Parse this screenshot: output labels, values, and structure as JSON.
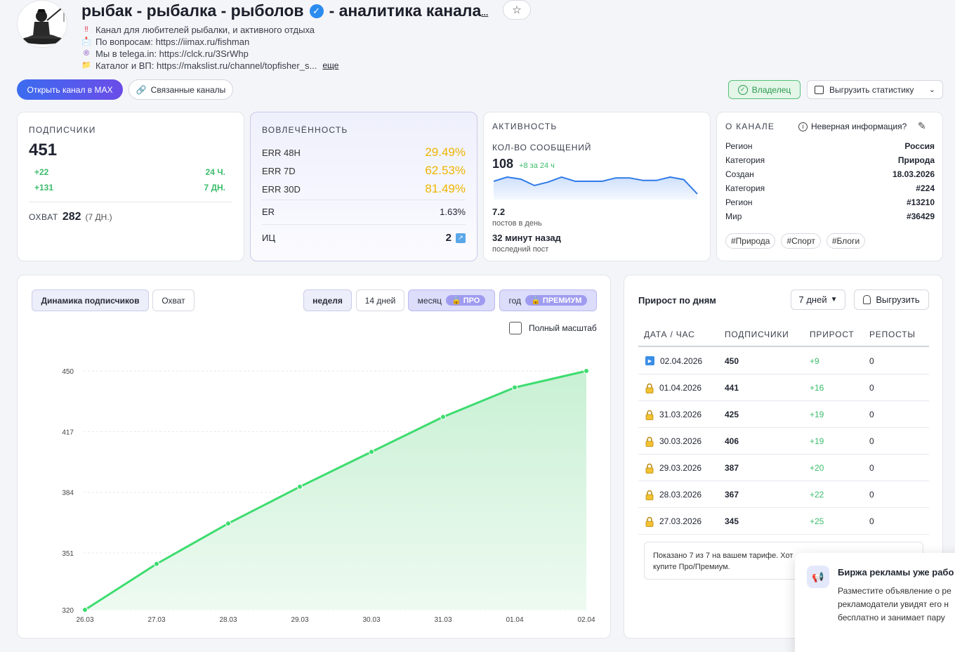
{
  "channel": {
    "title": "рыбак - рыбалка - рыболов",
    "title_suffix": "- аналитика канала",
    "title_more": "...",
    "desc": [
      {
        "icon": "‼",
        "text": "Канал для любителей рыбалки, и активного отдыха"
      },
      {
        "icon": "📩",
        "text": "По вопросам: https://iimax.ru/fishman"
      },
      {
        "icon": "®",
        "text": "Мы в telega.in: https://clck.ru/3SrWhp"
      },
      {
        "icon": "📁",
        "text": "Каталог и ВП: https://makslist.ru/channel/topfisher_s..."
      }
    ],
    "more_label": "еще"
  },
  "actions": {
    "open_channel": "Открыть канал в MAX",
    "linked_channels": "Связанные каналы",
    "owner": "Владелец",
    "export_stats": "Выгрузить статистику"
  },
  "subscribers": {
    "label": "ПОДПИСЧИКИ",
    "count": "451",
    "delta_24h": "+22",
    "delta_24h_label": "24 Ч.",
    "delta_7d": "+131",
    "delta_7d_label": "7 ДН.",
    "reach_label": "ОХВАТ",
    "reach_value": "282",
    "reach_period": "(7 ДН.)"
  },
  "engagement": {
    "label": "ВОВЛЕЧЁННОСТЬ",
    "rows": [
      {
        "name": "ERR 48H",
        "value": "29.49%"
      },
      {
        "name": "ERR 7D",
        "value": "62.53%"
      },
      {
        "name": "ERR 30D",
        "value": "81.49%"
      }
    ],
    "er_label": "ER",
    "er_value": "1.63%",
    "ic_label": "ИЦ",
    "ic_value": "2"
  },
  "activity": {
    "label": "АКТИВНОСТЬ",
    "messages_label": "КОЛ-ВО СООБЩЕНИЙ",
    "messages_count": "108",
    "messages_delta": "+8 за 24 ч",
    "sparkline": [
      3,
      4,
      3.5,
      2,
      2.8,
      4,
      3,
      3,
      3,
      3.8,
      3.8,
      3.2,
      3.2,
      4,
      3.4,
      0
    ],
    "posts_per_day": "7.2",
    "posts_per_day_label": "постов в день",
    "last_post": "32 минут назад",
    "last_post_label": "последний пост"
  },
  "about": {
    "label": "О КАНАЛЕ",
    "wrong_info": "Неверная информация?",
    "rows": [
      {
        "k": "Регион",
        "v": "Россия"
      },
      {
        "k": "Категория",
        "v": "Природа"
      },
      {
        "k": "Создан",
        "v": "18.03.2026"
      },
      {
        "k": "Категория",
        "v": "#224"
      },
      {
        "k": "Регион",
        "v": "#13210"
      },
      {
        "k": "Мир",
        "v": "#36429"
      }
    ],
    "tags": [
      "#Природа",
      "#Спорт",
      "#Блоги"
    ]
  },
  "chart_panel": {
    "tab_dynamics": "Динамика подписчиков",
    "tab_reach": "Охват",
    "period_week": "неделя",
    "period_14": "14 дней",
    "period_month": "месяц",
    "badge_pro": "ПРО",
    "period_year": "год",
    "badge_premium": "ПРЕМИУМ",
    "full_scale": "Полный масштаб"
  },
  "chart_data": {
    "type": "area",
    "categories": [
      "26.03",
      "27.03",
      "28.03",
      "29.03",
      "30.03",
      "31.03",
      "01.04",
      "02.04"
    ],
    "values": [
      320,
      345,
      367,
      387,
      406,
      425,
      441,
      450
    ],
    "yticks": [
      "450",
      "417",
      "384",
      "351",
      "320"
    ],
    "ylim": [
      320,
      450
    ],
    "color": "#3ddc6f"
  },
  "growth": {
    "title": "Прирост по дням",
    "period": "7 дней",
    "export": "Выгрузить",
    "headers": [
      "ДАТА / ЧАС",
      "ПОДПИСЧИКИ",
      "ПРИРОСТ",
      "РЕПОСТЫ"
    ],
    "rows": [
      {
        "date": "02.04.2026",
        "subs": "450",
        "delta": "+9",
        "reposts": "0",
        "icon": "play"
      },
      {
        "date": "01.04.2026",
        "subs": "441",
        "delta": "+16",
        "reposts": "0",
        "icon": "lock"
      },
      {
        "date": "31.03.2026",
        "subs": "425",
        "delta": "+19",
        "reposts": "0",
        "icon": "lock"
      },
      {
        "date": "30.03.2026",
        "subs": "406",
        "delta": "+19",
        "reposts": "0",
        "icon": "lock"
      },
      {
        "date": "29.03.2026",
        "subs": "387",
        "delta": "+20",
        "reposts": "0",
        "icon": "lock"
      },
      {
        "date": "28.03.2026",
        "subs": "367",
        "delta": "+22",
        "reposts": "0",
        "icon": "lock"
      },
      {
        "date": "27.03.2026",
        "subs": "345",
        "delta": "+25",
        "reposts": "0",
        "icon": "lock"
      }
    ],
    "note_line1": "Показано 7 из 7 на вашем тарифе. Хот",
    "note_line2": "купите Про/Премиум."
  },
  "toast": {
    "title": "Биржа рекламы уже рабо",
    "lines": [
      "Разместите объявление о ре",
      "рекламодатели увидят его н",
      "бесплатно и занимает пару"
    ]
  }
}
